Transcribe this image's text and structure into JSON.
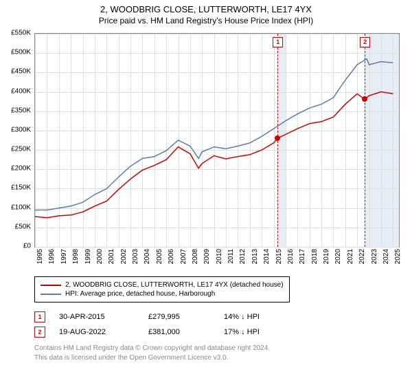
{
  "title": {
    "line1": "2, WOODBRIG CLOSE, LUTTERWORTH, LE17 4YX",
    "line2": "Price paid vs. HM Land Registry's House Price Index (HPI)"
  },
  "chart": {
    "type": "line",
    "background_color": "#ffffff",
    "grid_color": "#dddddd",
    "border_color": "#888888",
    "axis_font_size": 10,
    "title_font_size": 13,
    "x_range": [
      1995,
      2025.5
    ],
    "y_range": [
      0,
      550
    ],
    "ytick_step": 50,
    "ytick_prefix": "£",
    "ytick_suffix": "K",
    "xticks": [
      1995,
      1996,
      1997,
      1998,
      1999,
      2000,
      2001,
      2002,
      2003,
      2004,
      2005,
      2006,
      2007,
      2008,
      2009,
      2010,
      2011,
      2012,
      2013,
      2014,
      2015,
      2016,
      2017,
      2018,
      2019,
      2020,
      2021,
      2022,
      2023,
      2024,
      2025
    ],
    "shaded_regions": [
      {
        "start": 2015.33,
        "end": 2016.0,
        "color": "#e6edf5"
      },
      {
        "start": 2022.63,
        "end": 2025.5,
        "color": "#e6edf5"
      }
    ],
    "vertical_markers": [
      {
        "x": 2015.33,
        "label": "1",
        "box_color": "#d00000"
      },
      {
        "x": 2022.63,
        "label": "2",
        "box_color": "#d00000"
      }
    ],
    "series": [
      {
        "name": "property",
        "label": "2, WOODBRIG CLOSE, LUTTERWORTH, LE17 4YX (detached house)",
        "color": "#cc0000",
        "line_width": 1.5,
        "data": [
          [
            1995,
            78
          ],
          [
            1996,
            75
          ],
          [
            1997,
            80
          ],
          [
            1998,
            82
          ],
          [
            1999,
            90
          ],
          [
            2000,
            105
          ],
          [
            2001,
            118
          ],
          [
            2002,
            148
          ],
          [
            2003,
            175
          ],
          [
            2004,
            198
          ],
          [
            2005,
            210
          ],
          [
            2006,
            225
          ],
          [
            2007,
            258
          ],
          [
            2008,
            240
          ],
          [
            2008.7,
            203
          ],
          [
            2009,
            215
          ],
          [
            2010,
            235
          ],
          [
            2011,
            227
          ],
          [
            2012,
            233
          ],
          [
            2013,
            238
          ],
          [
            2014,
            250
          ],
          [
            2015,
            268
          ],
          [
            2015.33,
            280
          ],
          [
            2016,
            290
          ],
          [
            2017,
            305
          ],
          [
            2018,
            318
          ],
          [
            2019,
            323
          ],
          [
            2020,
            335
          ],
          [
            2021,
            368
          ],
          [
            2022,
            395
          ],
          [
            2022.63,
            381
          ],
          [
            2023,
            390
          ],
          [
            2024,
            400
          ],
          [
            2025,
            395
          ]
        ]
      },
      {
        "name": "hpi",
        "label": "HPI: Average price, detached house, Harborough",
        "color": "#5b7ba8",
        "line_width": 1.5,
        "data": [
          [
            1995,
            95
          ],
          [
            1996,
            95
          ],
          [
            1997,
            100
          ],
          [
            1998,
            105
          ],
          [
            1999,
            115
          ],
          [
            2000,
            135
          ],
          [
            2001,
            150
          ],
          [
            2002,
            180
          ],
          [
            2003,
            208
          ],
          [
            2004,
            228
          ],
          [
            2005,
            233
          ],
          [
            2006,
            248
          ],
          [
            2007,
            275
          ],
          [
            2008,
            260
          ],
          [
            2008.7,
            228
          ],
          [
            2009,
            245
          ],
          [
            2010,
            258
          ],
          [
            2011,
            253
          ],
          [
            2012,
            260
          ],
          [
            2013,
            268
          ],
          [
            2014,
            285
          ],
          [
            2015,
            305
          ],
          [
            2016,
            325
          ],
          [
            2017,
            343
          ],
          [
            2018,
            358
          ],
          [
            2019,
            368
          ],
          [
            2020,
            385
          ],
          [
            2021,
            430
          ],
          [
            2022,
            470
          ],
          [
            2022.8,
            485
          ],
          [
            2023,
            470
          ],
          [
            2024,
            478
          ],
          [
            2025,
            475
          ]
        ]
      }
    ],
    "sale_points": [
      {
        "x": 2015.33,
        "y": 280,
        "color": "#d00000"
      },
      {
        "x": 2022.63,
        "y": 381,
        "color": "#d00000"
      }
    ]
  },
  "legend": {
    "entries": [
      {
        "color": "#cc0000",
        "label": "2, WOODBRIG CLOSE, LUTTERWORTH, LE17 4YX (detached house)"
      },
      {
        "color": "#5b7ba8",
        "label": "HPI: Average price, detached house, Harborough"
      }
    ]
  },
  "sales": [
    {
      "marker": "1",
      "date": "30-APR-2015",
      "price": "£279,995",
      "diff": "14% ↓ HPI"
    },
    {
      "marker": "2",
      "date": "19-AUG-2022",
      "price": "£381,000",
      "diff": "17% ↓ HPI"
    }
  ],
  "footer": {
    "line1": "Contains HM Land Registry data © Crown copyright and database right 2024.",
    "line2": "This data is licensed under the Open Government Licence v3.0."
  }
}
